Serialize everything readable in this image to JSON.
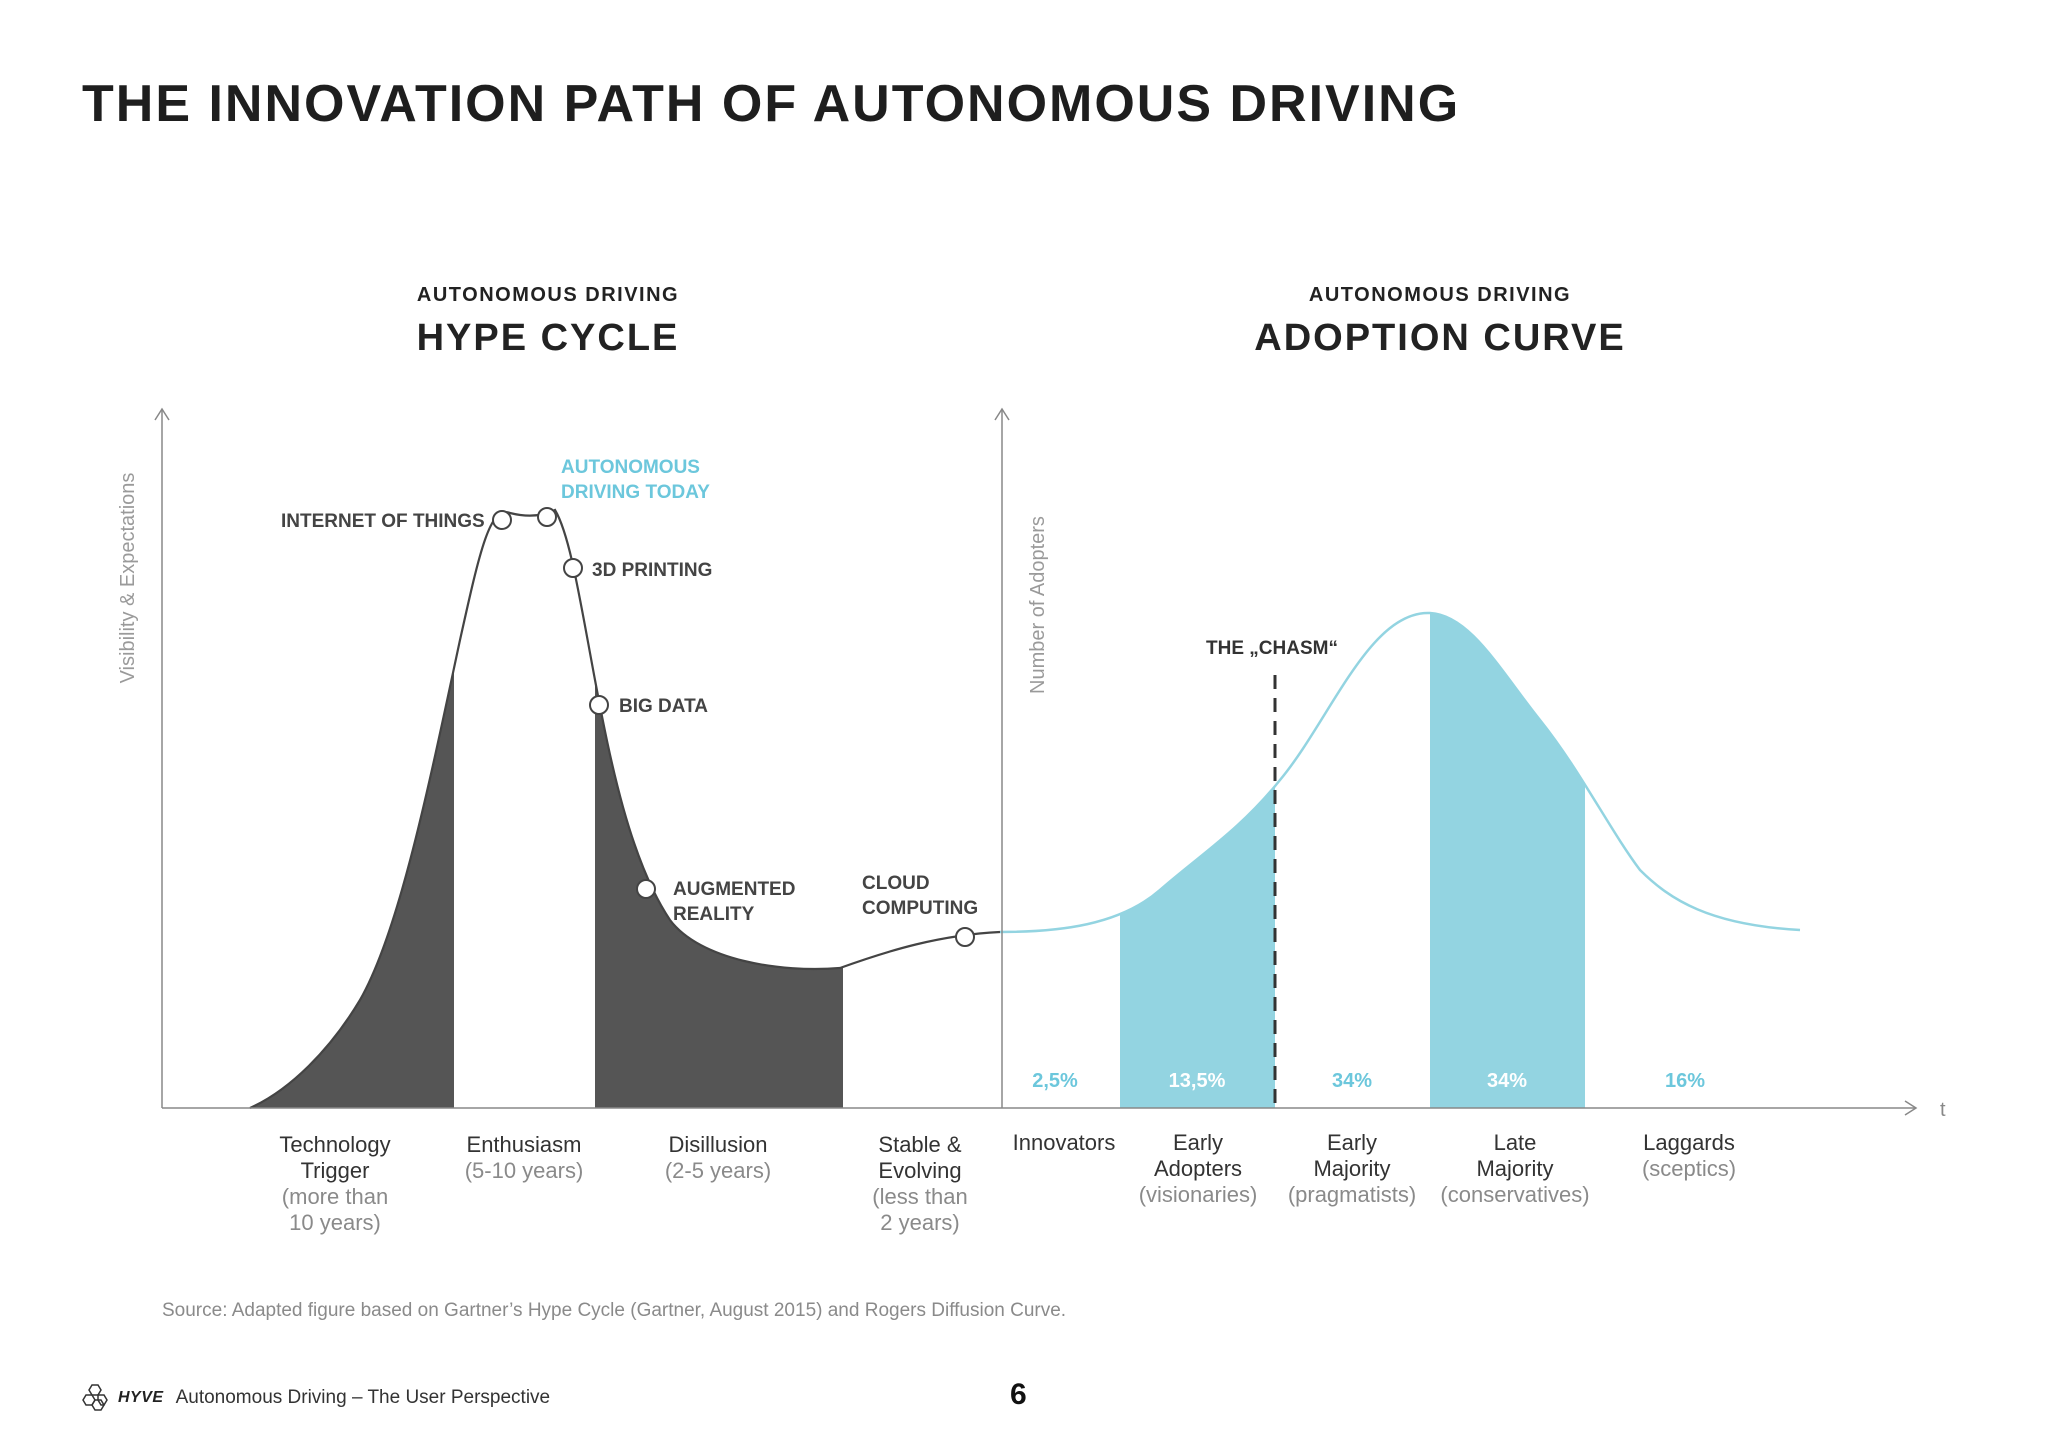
{
  "page": {
    "title": "THE INNOVATION PATH OF AUTONOMOUS DRIVING",
    "source": "Source: Adapted figure based on Gartner’s Hype Cycle (Gartner, August 2015) and Rogers Diffusion Curve.",
    "footer_text": "Autonomous Driving – The User Perspective",
    "footer_brand": "HYVE",
    "page_number": "6"
  },
  "hype": {
    "subtitle": "AUTONOMOUS DRIVING",
    "title": "HYPE CYCLE",
    "y_axis": "Visibility & Expectations",
    "markers": [
      {
        "label": "INTERNET OF THINGS"
      },
      {
        "label": [
          "AUTONOMOUS",
          "DRIVING TODAY"
        ]
      },
      {
        "label": "3D PRINTING"
      },
      {
        "label": "BIG DATA"
      },
      {
        "label": [
          "AUGMENTED",
          "REALITY"
        ]
      },
      {
        "label": [
          "CLOUD",
          "COMPUTING"
        ]
      }
    ],
    "phases": [
      {
        "lines": [
          "Technology",
          "Trigger"
        ],
        "sub": [
          "(more than",
          "10 years)"
        ]
      },
      {
        "lines": [
          "Enthusiasm"
        ],
        "sub": [
          "(5-10 years)"
        ]
      },
      {
        "lines": [
          "Disillusion"
        ],
        "sub": [
          "(2-5 years)"
        ]
      },
      {
        "lines": [
          "Stable &",
          "Evolving"
        ],
        "sub": [
          "(less than",
          "2 years)"
        ]
      }
    ]
  },
  "adoption": {
    "subtitle": "AUTONOMOUS DRIVING",
    "title": "ADOPTION CURVE",
    "y_axis": "Number of Adopters",
    "x_axis": "t",
    "chasm_label": "THE „CHASM“",
    "segments": [
      {
        "percent": "2,5%",
        "lines": [
          "Innovators"
        ],
        "sub": []
      },
      {
        "percent": "13,5%",
        "lines": [
          "Early",
          "Adopters"
        ],
        "sub": [
          "(visionaries)"
        ]
      },
      {
        "percent": "34%",
        "lines": [
          "Early",
          "Majority"
        ],
        "sub": [
          "(pragmatists)"
        ]
      },
      {
        "percent": "34%",
        "lines": [
          "Late",
          "Majority"
        ],
        "sub": [
          "(conservatives)"
        ]
      },
      {
        "percent": "16%",
        "lines": [
          "Laggards"
        ],
        "sub": [
          "(sceptics)"
        ]
      }
    ]
  },
  "colors": {
    "dark_fill": "#555555",
    "accent": "#93d4e1",
    "accent_text": "#6cc7dc",
    "curve_line": "#444444",
    "axis": "#888888"
  }
}
